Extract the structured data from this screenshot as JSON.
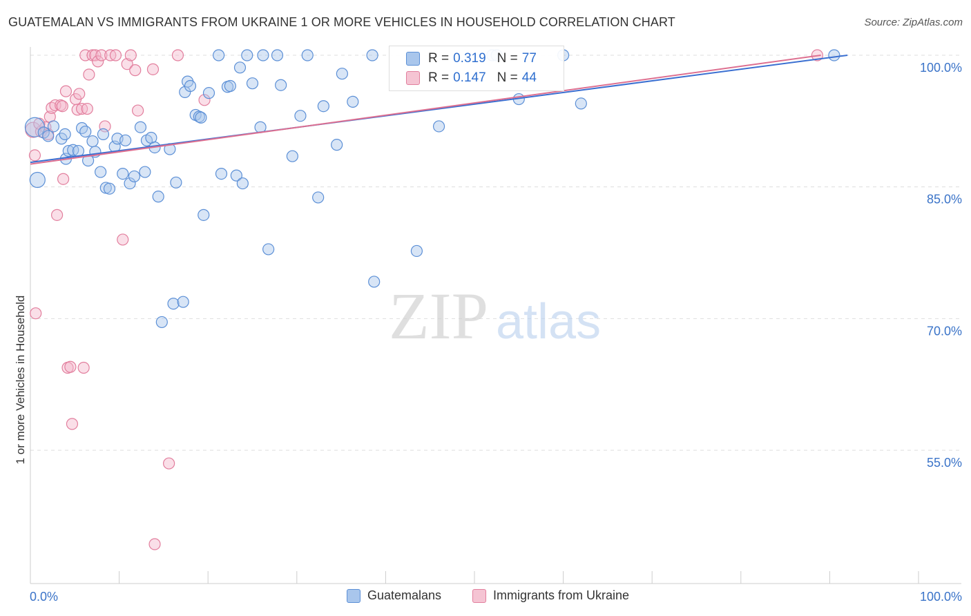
{
  "header": {
    "title": "GUATEMALAN VS IMMIGRANTS FROM UKRAINE 1 OR MORE VEHICLES IN HOUSEHOLD CORRELATION CHART",
    "source": "Source: ZipAtlas.com"
  },
  "watermark": {
    "zip": "ZIP",
    "atlas": "atlas"
  },
  "stats": {
    "r_label": "R =",
    "n_label": "N =",
    "rows": [
      {
        "series": "Guatemalans",
        "r": "0.319",
        "n": "77"
      },
      {
        "series": "Immigrants from Ukraine",
        "r": "0.147",
        "n": "44"
      }
    ]
  },
  "colors": {
    "blue_fill": "#a9c6ec",
    "blue_stroke": "#5b8fd6",
    "blue_line": "#3a6fd1",
    "pink_fill": "#f5b9cb",
    "pink_stroke": "#e27e9d",
    "pink_line": "#dd6f90",
    "tick_label": "#3a73c8",
    "grid": "#dddddd"
  },
  "chart_data": {
    "type": "scatter",
    "title": "GUATEMALAN VS IMMIGRANTS FROM UKRAINE 1 OR MORE VEHICLES IN HOUSEHOLD CORRELATION CHART",
    "xlabel": "",
    "ylabel": "1 or more Vehicles in Household",
    "xlim": [
      0,
      100
    ],
    "ylim": [
      40,
      101.5
    ],
    "x_tick_labels": [
      {
        "value": 0,
        "label": "0.0%"
      },
      {
        "value": 100,
        "label": "100.0%"
      }
    ],
    "y_tick_labels": [
      {
        "value": 100,
        "label": "100.0%"
      },
      {
        "value": 85,
        "label": "85.0%"
      },
      {
        "value": 70,
        "label": "70.0%"
      },
      {
        "value": 55,
        "label": "55.0%"
      }
    ],
    "legend": [
      "Guatemalans",
      "Immigrants from Ukraine"
    ],
    "legend_position": "bottom",
    "series": [
      {
        "name": "Guatemalans",
        "color": "#5b8fd6",
        "trend": {
          "x": [
            0,
            92
          ],
          "y": [
            87.8,
            100.0
          ]
        },
        "points": [
          [
            0.5,
            91.8,
            3
          ],
          [
            0.8,
            85.8,
            2
          ],
          [
            1.5,
            91.2,
            1
          ],
          [
            2.0,
            90.8,
            1
          ],
          [
            2.6,
            91.9,
            1
          ],
          [
            3.5,
            90.5,
            1
          ],
          [
            3.9,
            91.0,
            1
          ],
          [
            4.0,
            88.2,
            1
          ],
          [
            4.3,
            89.1,
            1
          ],
          [
            4.8,
            89.2,
            1
          ],
          [
            5.4,
            89.1,
            1
          ],
          [
            5.8,
            91.7,
            1
          ],
          [
            6.2,
            91.3,
            1
          ],
          [
            6.5,
            88.0,
            1
          ],
          [
            7.0,
            90.2,
            1
          ],
          [
            7.3,
            89.0,
            1
          ],
          [
            7.9,
            86.7,
            1
          ],
          [
            8.5,
            84.9,
            1
          ],
          [
            8.9,
            84.8,
            1
          ],
          [
            9.5,
            89.6,
            1
          ],
          [
            9.8,
            90.5,
            1
          ],
          [
            10.4,
            86.5,
            1
          ],
          [
            10.7,
            90.3,
            1
          ],
          [
            11.2,
            85.4,
            1
          ],
          [
            11.7,
            86.2,
            1
          ],
          [
            12.4,
            91.8,
            1
          ],
          [
            12.9,
            86.7,
            1
          ],
          [
            13.1,
            90.3,
            1
          ],
          [
            13.6,
            90.6,
            1
          ],
          [
            14.0,
            89.5,
            1
          ],
          [
            14.4,
            83.9,
            1
          ],
          [
            15.7,
            89.3,
            1
          ],
          [
            16.1,
            71.7,
            1
          ],
          [
            16.4,
            85.5,
            1
          ],
          [
            17.2,
            71.9,
            1
          ],
          [
            14.8,
            69.6,
            1
          ],
          [
            17.4,
            95.8,
            1
          ],
          [
            17.7,
            97.0,
            1
          ],
          [
            18.0,
            96.5,
            1
          ],
          [
            18.6,
            93.2,
            1
          ],
          [
            19.0,
            93.0,
            1
          ],
          [
            19.2,
            92.9,
            1
          ],
          [
            19.5,
            81.8,
            1
          ],
          [
            20.1,
            95.7,
            1
          ],
          [
            21.2,
            100.0,
            1
          ],
          [
            21.5,
            86.5,
            1
          ],
          [
            22.2,
            96.4,
            1
          ],
          [
            22.5,
            96.5,
            1
          ],
          [
            23.2,
            86.3,
            1
          ],
          [
            23.6,
            98.6,
            1
          ],
          [
            23.9,
            85.4,
            1
          ],
          [
            24.4,
            100.0,
            1
          ],
          [
            25.0,
            96.8,
            1
          ],
          [
            25.9,
            91.8,
            1
          ],
          [
            26.2,
            100.0,
            1
          ],
          [
            26.8,
            77.9,
            1
          ],
          [
            27.8,
            100.0,
            1
          ],
          [
            28.2,
            96.6,
            1
          ],
          [
            29.5,
            88.5,
            1
          ],
          [
            30.4,
            93.1,
            1
          ],
          [
            31.2,
            100.0,
            1
          ],
          [
            32.4,
            83.8,
            1
          ],
          [
            33.0,
            94.2,
            1
          ],
          [
            34.5,
            89.8,
            1
          ],
          [
            35.1,
            97.9,
            1
          ],
          [
            36.3,
            94.7,
            1
          ],
          [
            38.5,
            100.0,
            1
          ],
          [
            38.7,
            74.2,
            1
          ],
          [
            43.5,
            77.7,
            1
          ],
          [
            46.0,
            91.9,
            1
          ],
          [
            52.0,
            100.0,
            1
          ],
          [
            52.5,
            100.0,
            1
          ],
          [
            55.0,
            95.0,
            1
          ],
          [
            60.0,
            100.0,
            1
          ],
          [
            62.0,
            94.5,
            1
          ],
          [
            90.5,
            100.0,
            1
          ],
          [
            8.2,
            91.0,
            1
          ]
        ]
      },
      {
        "name": "Immigrants from Ukraine",
        "color": "#e27e9d",
        "trend": {
          "x": [
            0,
            89
          ],
          "y": [
            87.6,
            100.0
          ]
        },
        "points": [
          [
            0.3,
            91.5,
            2
          ],
          [
            0.5,
            88.6,
            1
          ],
          [
            0.6,
            70.6,
            1
          ],
          [
            1.2,
            91.3,
            1
          ],
          [
            1.7,
            91.8,
            1
          ],
          [
            2.2,
            93.0,
            1
          ],
          [
            2.4,
            94.0,
            1
          ],
          [
            2.8,
            94.3,
            1
          ],
          [
            3.0,
            81.8,
            1
          ],
          [
            3.4,
            94.3,
            1
          ],
          [
            3.6,
            94.2,
            1
          ],
          [
            3.7,
            85.9,
            1
          ],
          [
            4.0,
            95.9,
            1
          ],
          [
            4.2,
            64.4,
            1
          ],
          [
            4.5,
            64.5,
            1
          ],
          [
            4.7,
            58.0,
            1
          ],
          [
            5.1,
            95.0,
            1
          ],
          [
            5.3,
            93.8,
            1
          ],
          [
            5.5,
            95.6,
            1
          ],
          [
            5.8,
            93.9,
            1
          ],
          [
            6.0,
            64.4,
            1
          ],
          [
            6.2,
            100.0,
            1
          ],
          [
            6.4,
            93.9,
            1
          ],
          [
            6.6,
            97.8,
            1
          ],
          [
            7.0,
            100.0,
            1
          ],
          [
            7.3,
            100.0,
            1
          ],
          [
            7.6,
            99.3,
            1
          ],
          [
            8.0,
            100.0,
            1
          ],
          [
            8.4,
            91.9,
            1
          ],
          [
            9.0,
            100.0,
            1
          ],
          [
            9.6,
            100.0,
            1
          ],
          [
            10.4,
            79.0,
            1
          ],
          [
            10.9,
            99.0,
            1
          ],
          [
            11.3,
            100.0,
            1
          ],
          [
            11.8,
            98.3,
            1
          ],
          [
            12.1,
            93.7,
            1
          ],
          [
            13.8,
            98.4,
            1
          ],
          [
            14.0,
            44.3,
            1
          ],
          [
            15.6,
            53.5,
            1
          ],
          [
            16.6,
            100.0,
            1
          ],
          [
            19.6,
            94.9,
            1
          ],
          [
            88.6,
            100.0,
            1
          ],
          [
            1.0,
            92.2,
            1
          ],
          [
            2.0,
            91.0,
            1
          ]
        ]
      }
    ]
  }
}
